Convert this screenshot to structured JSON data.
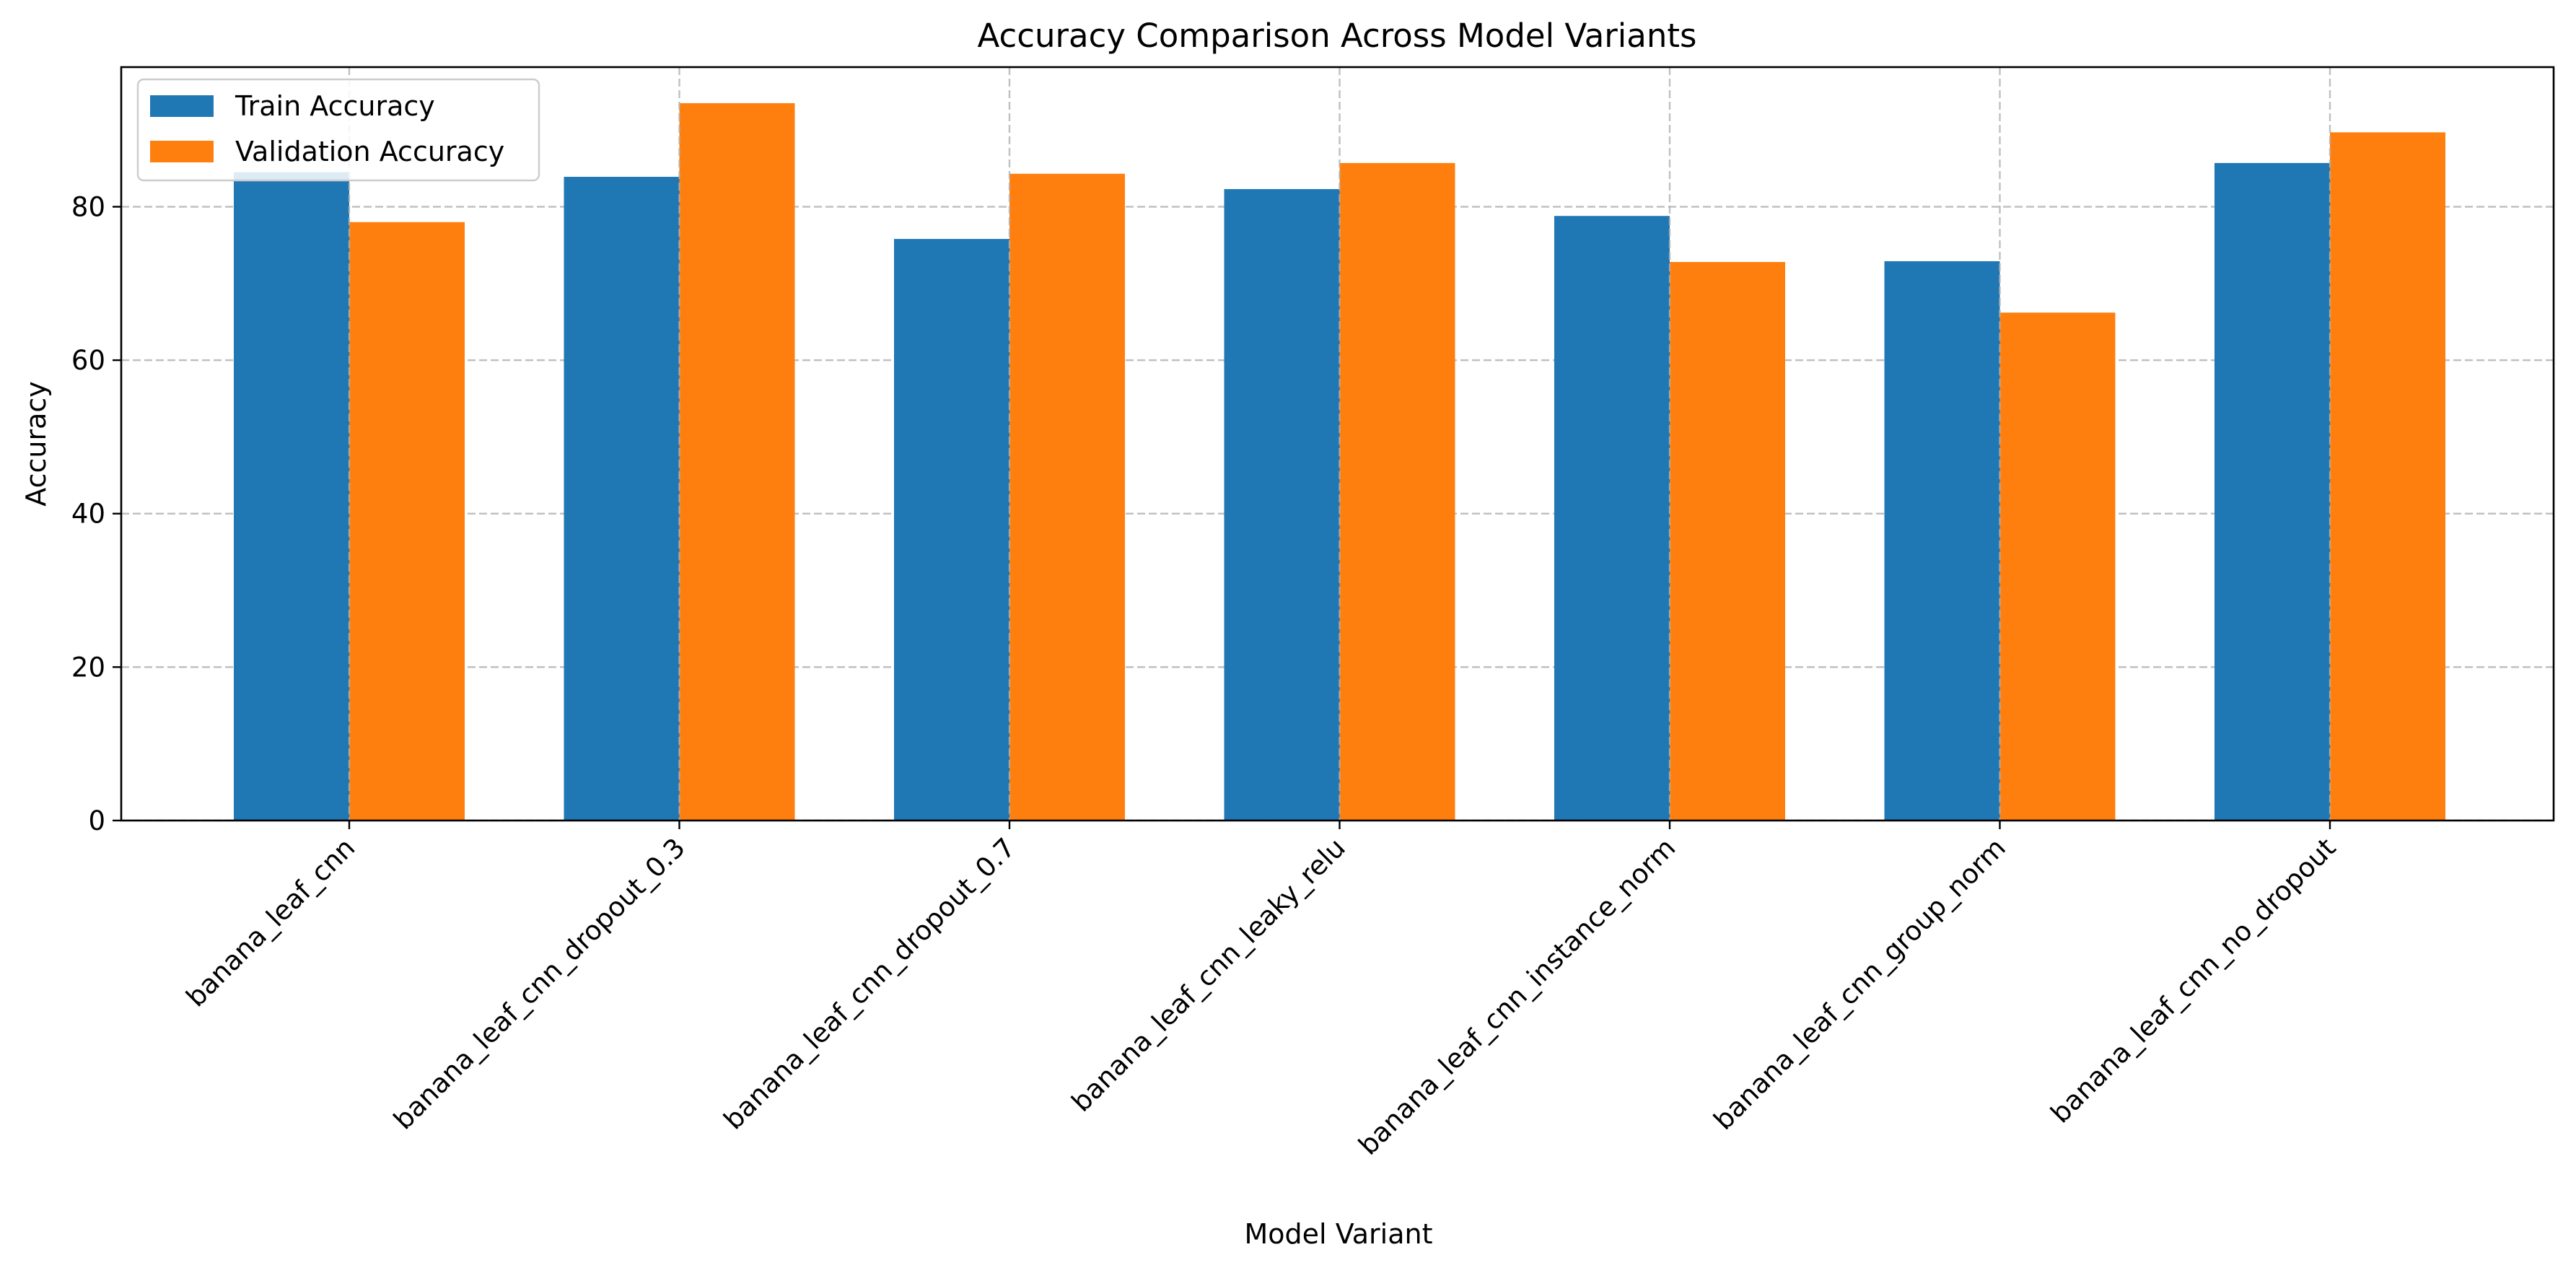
{
  "chart_data": {
    "type": "bar",
    "title": "Accuracy Comparison Across Model Variants",
    "xlabel": "Model Variant",
    "ylabel": "Accuracy",
    "categories": [
      "banana_leaf_cnn",
      "banana_leaf_cnn_dropout_0.3",
      "banana_leaf_cnn_dropout_0.7",
      "banana_leaf_cnn_leaky_relu",
      "banana_leaf_cnn_instance_norm",
      "banana_leaf_cnn_group_norm",
      "banana_leaf_cnn_no_dropout"
    ],
    "series": [
      {
        "name": "Train Accuracy",
        "color": "#1f77b4",
        "values": [
          84.5,
          83.9,
          75.8,
          82.3,
          78.8,
          72.9,
          85.7
        ]
      },
      {
        "name": "Validation Accuracy",
        "color": "#ff7f0e",
        "values": [
          78.0,
          93.5,
          84.3,
          85.7,
          72.8,
          66.2,
          89.7
        ]
      }
    ],
    "ylim": [
      0,
      98.2
    ],
    "yticks": [
      0,
      20,
      40,
      60,
      80
    ],
    "grid": true,
    "legend_position": "upper-left"
  }
}
